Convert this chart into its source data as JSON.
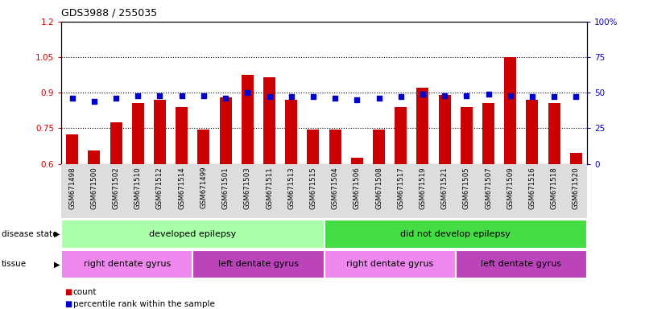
{
  "title": "GDS3988 / 255035",
  "samples": [
    "GSM671498",
    "GSM671500",
    "GSM671502",
    "GSM671510",
    "GSM671512",
    "GSM671514",
    "GSM671499",
    "GSM671501",
    "GSM671503",
    "GSM671511",
    "GSM671513",
    "GSM671515",
    "GSM671504",
    "GSM671506",
    "GSM671508",
    "GSM671517",
    "GSM671519",
    "GSM671521",
    "GSM671505",
    "GSM671507",
    "GSM671509",
    "GSM671516",
    "GSM671518",
    "GSM671520"
  ],
  "bar_values": [
    0.725,
    0.655,
    0.775,
    0.855,
    0.87,
    0.84,
    0.745,
    0.88,
    0.975,
    0.965,
    0.87,
    0.745,
    0.745,
    0.625,
    0.745,
    0.84,
    0.92,
    0.89,
    0.84,
    0.855,
    1.05,
    0.87,
    0.855,
    0.645
  ],
  "dot_values": [
    46,
    44,
    46,
    48,
    48,
    48,
    48,
    46,
    50,
    47,
    47,
    47,
    46,
    45,
    46,
    47,
    49,
    48,
    48,
    49,
    48,
    47,
    47,
    47
  ],
  "bar_color": "#CC0000",
  "dot_color": "#0000CC",
  "ylim_left": [
    0.6,
    1.2
  ],
  "ylim_right": [
    0,
    100
  ],
  "yticks_left": [
    0.6,
    0.75,
    0.9,
    1.05,
    1.2
  ],
  "yticks_left_labels": [
    "0.6",
    "0.75",
    "0.9",
    "1.05",
    "1.2"
  ],
  "yticks_right": [
    0,
    25,
    50,
    75,
    100
  ],
  "yticks_right_labels": [
    "0",
    "25",
    "50",
    "75",
    "100%"
  ],
  "hlines": [
    0.75,
    0.9,
    1.05
  ],
  "groups": {
    "disease_state": [
      {
        "label": "developed epilepsy",
        "start": 0,
        "end": 12,
        "color": "#AAFFAA"
      },
      {
        "label": "did not develop epilepsy",
        "start": 12,
        "end": 24,
        "color": "#44DD44"
      }
    ],
    "tissue": [
      {
        "label": "right dentate gyrus",
        "start": 0,
        "end": 6,
        "color": "#EE88EE"
      },
      {
        "label": "left dentate gyrus",
        "start": 6,
        "end": 12,
        "color": "#BB44BB"
      },
      {
        "label": "right dentate gyrus",
        "start": 12,
        "end": 18,
        "color": "#EE88EE"
      },
      {
        "label": "left dentate gyrus",
        "start": 18,
        "end": 24,
        "color": "#BB44BB"
      }
    ]
  },
  "legend": [
    {
      "label": "count",
      "color": "#CC0000"
    },
    {
      "label": "percentile rank within the sample",
      "color": "#0000CC"
    }
  ],
  "background_color": "#FFFFFF",
  "xticklabel_bg": "#DDDDDD"
}
